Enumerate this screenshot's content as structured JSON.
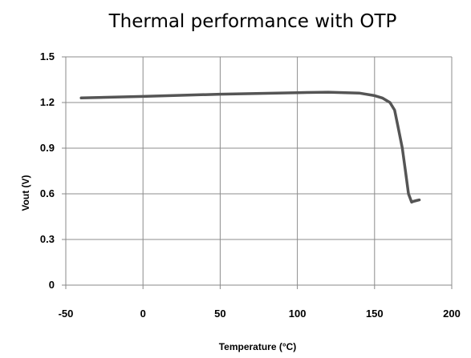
{
  "chart_data": {
    "type": "line",
    "title": "Thermal performance with OTP",
    "xlabel": "Temperature (°C)",
    "ylabel": "Vout (V)",
    "xlim": [
      -50,
      200
    ],
    "ylim": [
      0,
      1.5
    ],
    "x_ticks": [
      "-50",
      "0",
      "50",
      "100",
      "150",
      "200"
    ],
    "y_ticks": [
      "0",
      "0.3",
      "0.6",
      "0.9",
      "1.2",
      "1.5"
    ],
    "grid": true,
    "legend": "none",
    "series": [
      {
        "x": [
          -40,
          0,
          50,
          100,
          120,
          140,
          150,
          155,
          160,
          163,
          165,
          168,
          170,
          172,
          174,
          175,
          177,
          179
        ],
        "y": [
          1.23,
          1.24,
          1.255,
          1.265,
          1.268,
          1.262,
          1.245,
          1.23,
          1.2,
          1.15,
          1.05,
          0.9,
          0.75,
          0.6,
          0.545,
          0.55,
          0.555,
          0.56
        ],
        "color": "#555555"
      }
    ]
  }
}
